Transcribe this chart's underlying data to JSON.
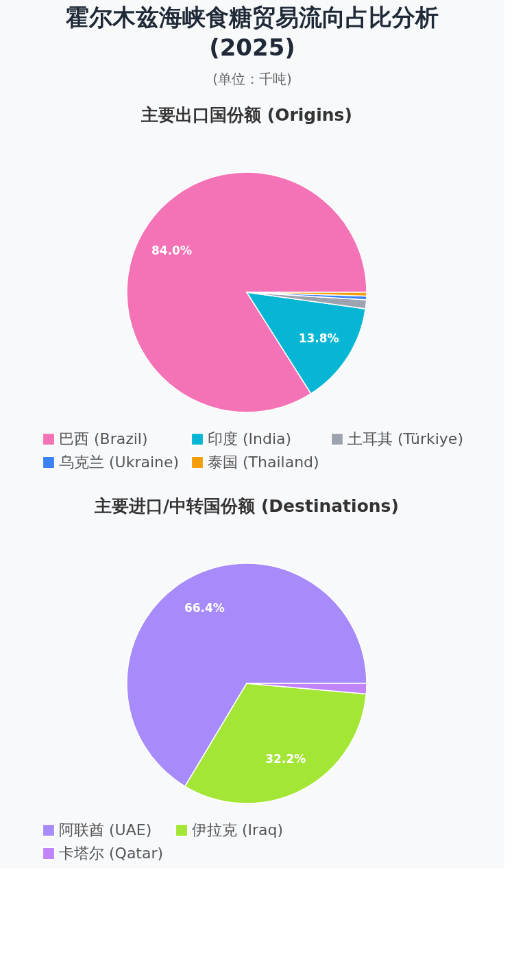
{
  "chart_data": [
    {
      "type": "other",
      "title": "霍尔木兹海峡食糖贸易流向占比分析 (2025)",
      "subtitle": "(单位：千吨)"
    },
    {
      "type": "pie",
      "title": "主要出口国份额 (Origins)",
      "categories": [
        "巴西 (Brazil)",
        "印度 (India)",
        "土耳其 (Türkiye)",
        "乌克兰 (Ukraine)",
        "泰国 (Thailand)"
      ],
      "values": [
        84.0,
        13.8,
        1.2,
        0.5,
        0.5
      ],
      "colors": [
        "#f472b6",
        "#06b6d4",
        "#9ca3af",
        "#3b82f6",
        "#f59e0b"
      ],
      "value_labels": [
        "84.0%",
        "13.8%",
        null,
        null,
        null
      ],
      "legend": "bottom"
    },
    {
      "type": "pie",
      "title": "主要进口/中转国份额 (Destinations)",
      "categories": [
        "阿联酋 (UAE)",
        "伊拉克 (Iraq)",
        "卡塔尔 (Qatar)"
      ],
      "values": [
        66.4,
        32.2,
        1.4
      ],
      "colors": [
        "#a78bfa",
        "#a3e635",
        "#c084fc"
      ],
      "value_labels": [
        "66.4%",
        "32.2%",
        null
      ],
      "legend": "bottom"
    }
  ]
}
